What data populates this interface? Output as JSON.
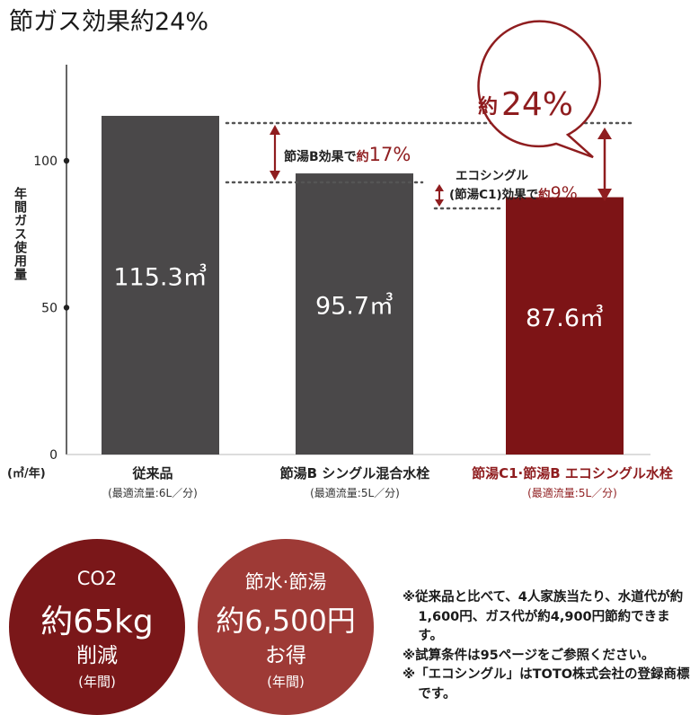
{
  "title": "節ガス効果約24%",
  "colors": {
    "bar_dark": "#4a4849",
    "bar_red": "#7d1416",
    "accent_red": "#8f1d1f",
    "circle_co2": "#7a1719",
    "circle_water": "#9e3a36"
  },
  "chart_data": {
    "type": "bar",
    "ylabel": "年間ガス使用量",
    "unit_label": "(㎥/年)",
    "ylim": [
      0,
      130
    ],
    "yticks": [
      0,
      50,
      100
    ],
    "categories": [
      "従来品",
      "節湯B シングル混合水栓",
      "節湯C1·節湯B エコシングル水栓"
    ],
    "subcategories": [
      "(最適流量:6L／分)",
      "(最適流量:5L／分)",
      "(最適流量:5L／分)"
    ],
    "values": [
      115.3,
      95.7,
      87.6
    ],
    "value_labels": [
      "115.3㎥",
      "95.7㎥",
      "87.6㎥"
    ],
    "annotations": {
      "diff_b": {
        "prefix": "節湯B効果で",
        "yaku": "約",
        "pct": "17%"
      },
      "diff_c1": {
        "line1": "エコシングル",
        "line2": "(節湯C1)効果で",
        "yaku": "約",
        "pct": "9%"
      },
      "bubble": {
        "yaku": "約",
        "pct": "24%"
      }
    }
  },
  "circles": {
    "co2": {
      "top": "CO2",
      "big": "約65kg",
      "sub": "削減",
      "year": "(年間)"
    },
    "water": {
      "top": "節水·節湯",
      "big": "約6,500円",
      "sub": "お得",
      "year": "(年間)"
    }
  },
  "notes": [
    "※従来品と比べて、4人家族当たり、水道代が約1,600円、ガス代が約4,900円節約できます。",
    "※試算条件は95ページをご参照ください。",
    "※「エコシングル」はTOTO株式会社の登録商標です。"
  ]
}
